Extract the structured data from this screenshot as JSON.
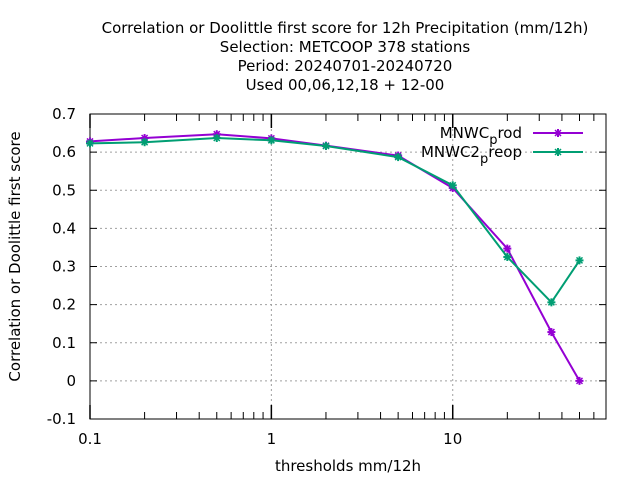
{
  "chart_data": {
    "type": "line",
    "title_lines": [
      "Correlation or Doolittle first score  for 12h Precipitation (mm/12h)",
      "Selection: METCOOP    378 stations",
      "Period: 20240701-20240720",
      "Used  00,06,12,18 + 12-00"
    ],
    "xlabel": "thresholds mm/12h",
    "ylabel": "Correlation or Doolittle first score",
    "xscale": "log",
    "xlim": [
      0.1,
      70
    ],
    "ylim": [
      -0.1,
      0.7
    ],
    "xticks": [
      0.1,
      1,
      10
    ],
    "xtick_labels": [
      "0.1",
      "1",
      "10"
    ],
    "yticks": [
      -0.1,
      0,
      0.1,
      0.2,
      0.3,
      0.4,
      0.5,
      0.6,
      0.7
    ],
    "ytick_labels": [
      "-0.1",
      "0",
      "0.1",
      "0.2",
      "0.3",
      "0.4",
      "0.5",
      "0.6",
      "0.7"
    ],
    "grid": true,
    "legend_position": "top-right",
    "series": [
      {
        "name_main": "MNWC",
        "name_sub": "p",
        "name_rest": "rod",
        "color": "#9400d3",
        "x": [
          0.1,
          0.2,
          0.5,
          1,
          2,
          5,
          10,
          20,
          35,
          50
        ],
        "y": [
          0.628,
          0.637,
          0.647,
          0.636,
          0.617,
          0.591,
          0.506,
          0.347,
          0.128,
          0.0
        ]
      },
      {
        "name_main": "MNWC2",
        "name_sub": "p",
        "name_rest": "reop",
        "color": "#009e73",
        "x": [
          0.1,
          0.2,
          0.5,
          1,
          2,
          5,
          10,
          20,
          35,
          50
        ],
        "y": [
          0.623,
          0.626,
          0.637,
          0.631,
          0.616,
          0.587,
          0.513,
          0.325,
          0.206,
          0.316
        ]
      }
    ]
  }
}
